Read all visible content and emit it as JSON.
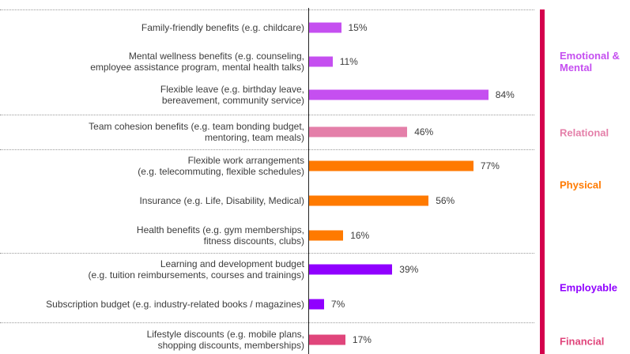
{
  "chart_data": {
    "type": "bar",
    "orientation": "horizontal",
    "xlim": [
      0,
      100
    ],
    "groups": [
      {
        "name": "Emotional & Mental",
        "color": "#c54ff0",
        "categories": [
          "Family-friendly benefits (e.g. childcare)",
          "Mental wellness benefits (e.g. counseling,\nemployee assistance program, mental health talks)",
          "Flexible leave (e.g. birthday leave,\nbereavement, community service)"
        ],
        "values": [
          15,
          11,
          84
        ],
        "value_labels": [
          "15%",
          "11%",
          "84%"
        ]
      },
      {
        "name": "Relational",
        "color": "#e47fa9",
        "categories": [
          "Team cohesion benefits (e.g. team bonding budget,\nmentoring, team meals)"
        ],
        "values": [
          46
        ],
        "value_labels": [
          "46%"
        ]
      },
      {
        "name": "Physical",
        "color": "#ff7a00",
        "categories": [
          "Flexible work arrangements\n(e.g. telecommuting, flexible schedules)",
          "Insurance (e.g. Life, Disability, Medical)",
          "Health benefits (e.g. gym memberships,\nfitness discounts, clubs)"
        ],
        "values": [
          77,
          56,
          16
        ],
        "value_labels": [
          "77%",
          "56%",
          "16%"
        ]
      },
      {
        "name": "Employable",
        "color": "#9000ff",
        "categories": [
          "Learning and development budget\n(e.g. tuition reimbursements, courses and trainings)",
          "Subscription budget (e.g. industry-related books / magazines)"
        ],
        "values": [
          39,
          7
        ],
        "value_labels": [
          "39%",
          "7%"
        ]
      },
      {
        "name": "Financial",
        "color": "#e0457b",
        "categories": [
          "Lifestyle discounts (e.g. mobile plans,\nshopping discounts, memberships)"
        ],
        "values": [
          17
        ],
        "value_labels": [
          "17%"
        ]
      }
    ]
  }
}
